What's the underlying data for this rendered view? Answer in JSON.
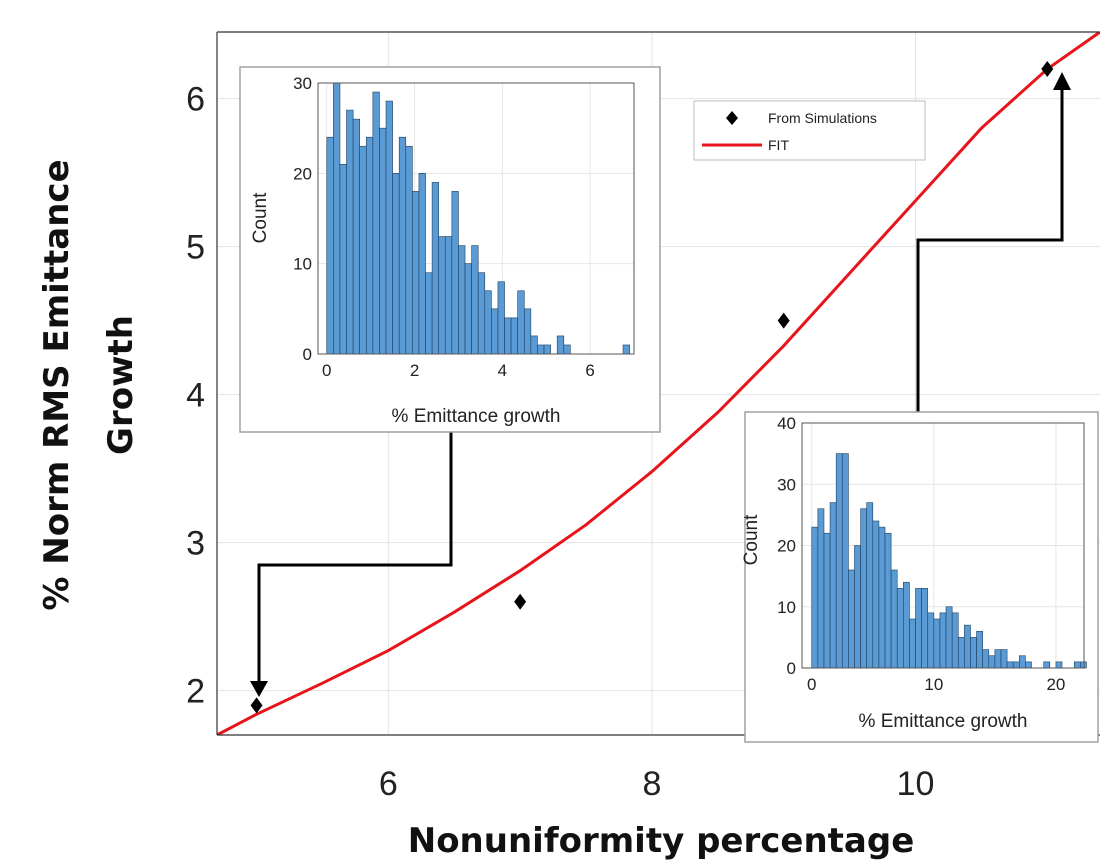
{
  "chart_data": [
    {
      "type": "scatter",
      "xlabel": "Nonuniformity percentage",
      "ylabel": "% Norm RMS Emittance Growth",
      "xlim": [
        4.7,
        11.4
      ],
      "ylim": [
        1.7,
        6.45
      ],
      "x_ticks": [
        6,
        8,
        10
      ],
      "y_ticks": [
        2,
        3,
        4,
        5,
        6
      ],
      "grid": true,
      "legend_position": "top-right",
      "series": [
        {
          "name": "From Simulations",
          "style": "markers",
          "marker": "diamond",
          "color": "#000000",
          "x": [
            5,
            7,
            9,
            11
          ],
          "y": [
            1.9,
            2.6,
            4.5,
            6.2
          ]
        },
        {
          "name": "FIT",
          "style": "line",
          "color": "#e8141b",
          "x": [
            4.7,
            5.0,
            5.5,
            6.0,
            6.5,
            7.0,
            7.5,
            8.0,
            8.5,
            9.0,
            9.5,
            10.0,
            10.5,
            11.0,
            11.4
          ],
          "y": [
            1.7,
            1.84,
            2.05,
            2.27,
            2.53,
            2.81,
            3.12,
            3.48,
            3.88,
            4.33,
            4.82,
            5.31,
            5.8,
            6.2,
            6.45
          ]
        }
      ]
    },
    {
      "type": "bar",
      "xlabel": "% Emittance growth",
      "ylabel": "Count",
      "xlim": [
        -0.2,
        7.0
      ],
      "ylim": [
        0,
        30
      ],
      "x_ticks": [
        0,
        2,
        4,
        6
      ],
      "y_ticks": [
        0,
        10,
        20,
        30
      ],
      "bin_width": 0.15,
      "bin_start": 0,
      "color": "#5b9bd5",
      "values": [
        24,
        30,
        21,
        27,
        26,
        23,
        24,
        29,
        25,
        28,
        20,
        24,
        23,
        18,
        20,
        9,
        19,
        13,
        13,
        18,
        12,
        10,
        12,
        9,
        7,
        5,
        8,
        4,
        4,
        7,
        5,
        2,
        1,
        1,
        0,
        2,
        1,
        0,
        0,
        0,
        0,
        0,
        0,
        0,
        0,
        1
      ]
    },
    {
      "type": "bar",
      "xlabel": "% Emittance growth",
      "ylabel": "Count",
      "xlim": [
        -0.8,
        22.3
      ],
      "ylim": [
        0,
        40
      ],
      "x_ticks": [
        0,
        10,
        20
      ],
      "y_ticks": [
        0,
        10,
        20,
        30,
        40
      ],
      "bin_width": 0.5,
      "bin_start": 0,
      "color": "#5b9bd5",
      "values": [
        23,
        26,
        22,
        27,
        35,
        35,
        16,
        20,
        26,
        27,
        24,
        23,
        22,
        16,
        13,
        14,
        8,
        13,
        13,
        9,
        8,
        9,
        10,
        9,
        5,
        7,
        5,
        6,
        3,
        2,
        3,
        3,
        1,
        1,
        2,
        1,
        0,
        0,
        1,
        0,
        1,
        0,
        0,
        1,
        1
      ]
    }
  ]
}
